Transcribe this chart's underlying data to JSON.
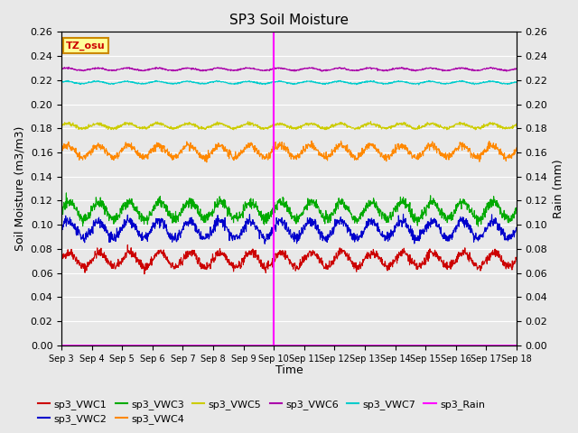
{
  "title": "SP3 Soil Moisture",
  "xlabel": "Time",
  "ylabel_left": "Soil Moisture (m3/m3)",
  "ylabel_right": "Rain (mm)",
  "annotation_label": "TZ_osu",
  "x_tick_labels": [
    "Sep 3",
    "Sep 4",
    "Sep 5",
    "Sep 6",
    "Sep 7",
    "Sep 8",
    "Sep 9",
    "Sep 10",
    "Sep 11",
    "Sep 12",
    "Sep 13",
    "Sep 14",
    "Sep 15",
    "Sep 16",
    "Sep 17",
    "Sep 18"
  ],
  "ylim": [
    0.0,
    0.26
  ],
  "yticks": [
    0.0,
    0.02,
    0.04,
    0.06,
    0.08,
    0.1,
    0.12,
    0.14,
    0.16,
    0.18,
    0.2,
    0.22,
    0.24,
    0.26
  ],
  "n_points": 1440,
  "vline_x": 7.0,
  "series": [
    {
      "name": "sp3_VWC1",
      "color": "#cc0000",
      "base": 0.071,
      "amp": 0.006,
      "period": 1.0,
      "phase": 0.0
    },
    {
      "name": "sp3_VWC2",
      "color": "#0000cc",
      "base": 0.096,
      "amp": 0.007,
      "period": 1.0,
      "phase": 0.2
    },
    {
      "name": "sp3_VWC3",
      "color": "#00aa00",
      "base": 0.112,
      "amp": 0.007,
      "period": 1.0,
      "phase": 0.1
    },
    {
      "name": "sp3_VWC4",
      "color": "#ff8800",
      "base": 0.161,
      "amp": 0.005,
      "period": 1.0,
      "phase": 0.3
    },
    {
      "name": "sp3_VWC5",
      "color": "#cccc00",
      "base": 0.182,
      "amp": 0.002,
      "period": 1.0,
      "phase": 0.4
    },
    {
      "name": "sp3_VWC6",
      "color": "#aa00aa",
      "base": 0.229,
      "amp": 0.001,
      "period": 1.0,
      "phase": 0.5
    },
    {
      "name": "sp3_VWC7",
      "color": "#00cccc",
      "base": 0.218,
      "amp": 0.001,
      "period": 1.0,
      "phase": 0.6
    },
    {
      "name": "sp3_Rain",
      "color": "#ff00ff",
      "base": 0.0,
      "amp": 0.0,
      "period": 1.0,
      "phase": 0.0
    }
  ],
  "background_color": "#e8e8e8",
  "grid_color": "#ffffff",
  "fig_facecolor": "#e8e8e8",
  "legend_items": [
    {
      "label": "sp3_VWC1",
      "color": "#cc0000"
    },
    {
      "label": "sp3_VWC2",
      "color": "#0000cc"
    },
    {
      "label": "sp3_VWC3",
      "color": "#00aa00"
    },
    {
      "label": "sp3_VWC4",
      "color": "#ff8800"
    },
    {
      "label": "sp3_VWC5",
      "color": "#cccc00"
    },
    {
      "label": "sp3_VWC6",
      "color": "#aa00aa"
    },
    {
      "label": "sp3_VWC7",
      "color": "#00cccc"
    },
    {
      "label": "sp3_Rain",
      "color": "#ff00ff"
    }
  ]
}
